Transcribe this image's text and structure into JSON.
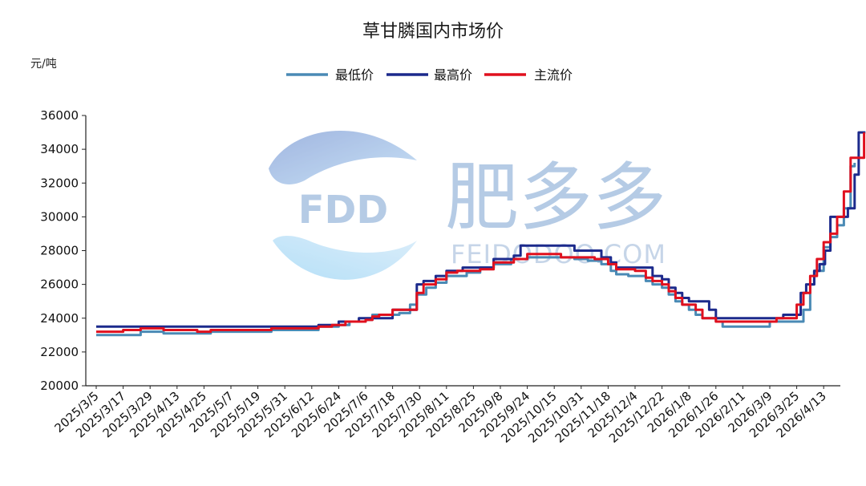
{
  "chart_data": {
    "type": "line",
    "title": "草甘膦国内市场价",
    "ylabel": "元/吨",
    "xlabel": "",
    "ylim": [
      20000,
      36000
    ],
    "yticks": [
      20000,
      22000,
      24000,
      26000,
      28000,
      30000,
      32000,
      34000,
      36000
    ],
    "x_tick_labels": [
      "2025/3/5",
      "2025/3/17",
      "2025/3/29",
      "2025/4/13",
      "2025/4/25",
      "2025/5/7",
      "2025/5/19",
      "2025/5/31",
      "2025/6/12",
      "2025/6/24",
      "2025/7/6",
      "2025/7/18",
      "2025/7/30",
      "2025/8/11",
      "2025/8/25",
      "2025/9/8",
      "2025/9/24",
      "2025/10/15",
      "2025/10/31",
      "2025/11/18",
      "2025/12/4",
      "2025/12/22",
      "2026/1/8",
      "2026/1/26",
      "2026/2/11",
      "2026/3/9",
      "2026/3/25",
      "2026/4/13"
    ],
    "legend_position": "top-center",
    "grid": false,
    "series": [
      {
        "name": "最低价",
        "color": "#4a8ab5",
        "points": [
          [
            0,
            23000
          ],
          [
            3.3,
            23200
          ],
          [
            5.0,
            23100
          ],
          [
            7.5,
            23100
          ],
          [
            8.5,
            23200
          ],
          [
            12.5,
            23200
          ],
          [
            13.0,
            23300
          ],
          [
            16.0,
            23300
          ],
          [
            16.5,
            23500
          ],
          [
            18.0,
            23600
          ],
          [
            18.8,
            23800
          ],
          [
            20.0,
            23900
          ],
          [
            20.5,
            24200
          ],
          [
            21.0,
            24200
          ],
          [
            22.5,
            24300
          ],
          [
            23.3,
            24800
          ],
          [
            23.8,
            25400
          ],
          [
            24.5,
            25800
          ],
          [
            25.2,
            26100
          ],
          [
            26.0,
            26500
          ],
          [
            26.8,
            26500
          ],
          [
            27.5,
            26700
          ],
          [
            28.5,
            27000
          ],
          [
            29.5,
            27200
          ],
          [
            30.8,
            27500
          ],
          [
            32.0,
            27600
          ],
          [
            33.5,
            27600
          ],
          [
            35.5,
            27500
          ],
          [
            36.5,
            27400
          ],
          [
            37.5,
            27200
          ],
          [
            38.2,
            26800
          ],
          [
            38.6,
            26600
          ],
          [
            39.5,
            26500
          ],
          [
            40.8,
            26200
          ],
          [
            41.3,
            26000
          ],
          [
            42.0,
            25800
          ],
          [
            42.5,
            25400
          ],
          [
            43.0,
            25000
          ],
          [
            43.5,
            24800
          ],
          [
            44.0,
            24500
          ],
          [
            44.5,
            24200
          ],
          [
            45.0,
            24000
          ],
          [
            46.0,
            23800
          ],
          [
            46.5,
            23500
          ],
          [
            47.0,
            23500
          ],
          [
            49.5,
            23500
          ],
          [
            50.0,
            23800
          ],
          [
            52.0,
            23800
          ],
          [
            52.5,
            24500
          ],
          [
            53.0,
            26000
          ],
          [
            53.3,
            26800
          ],
          [
            54.0,
            28200
          ],
          [
            54.5,
            28800
          ],
          [
            55.0,
            29500
          ],
          [
            55.5,
            30500
          ],
          [
            56.0,
            33000
          ],
          [
            56.3,
            33200
          ]
        ]
      },
      {
        "name": "最高价",
        "color": "#1c2a8c",
        "points": [
          [
            0,
            23500
          ],
          [
            16.0,
            23500
          ],
          [
            16.5,
            23600
          ],
          [
            18.0,
            23800
          ],
          [
            19.5,
            24000
          ],
          [
            21.5,
            24000
          ],
          [
            22.0,
            24500
          ],
          [
            23.3,
            24500
          ],
          [
            23.8,
            26000
          ],
          [
            24.3,
            26200
          ],
          [
            25.2,
            26500
          ],
          [
            26.0,
            26800
          ],
          [
            27.2,
            27000
          ],
          [
            29.5,
            27500
          ],
          [
            31.0,
            27700
          ],
          [
            31.5,
            28300
          ],
          [
            35.0,
            28300
          ],
          [
            35.5,
            28000
          ],
          [
            36.8,
            28000
          ],
          [
            37.5,
            27600
          ],
          [
            38.2,
            27300
          ],
          [
            38.6,
            27000
          ],
          [
            41.0,
            27000
          ],
          [
            41.3,
            26500
          ],
          [
            42.0,
            26300
          ],
          [
            42.5,
            25800
          ],
          [
            43.0,
            25500
          ],
          [
            43.5,
            25200
          ],
          [
            44.0,
            25000
          ],
          [
            45.0,
            25000
          ],
          [
            45.5,
            24500
          ],
          [
            46.0,
            24000
          ],
          [
            46.5,
            24000
          ],
          [
            50.5,
            24000
          ],
          [
            51.0,
            24200
          ],
          [
            51.8,
            24200
          ],
          [
            52.3,
            25500
          ],
          [
            52.7,
            26000
          ],
          [
            53.3,
            26800
          ],
          [
            53.7,
            27200
          ],
          [
            54.1,
            28000
          ],
          [
            54.5,
            30000
          ],
          [
            55.3,
            30000
          ],
          [
            55.8,
            30500
          ],
          [
            56.3,
            32500
          ],
          [
            56.6,
            35000
          ],
          [
            57.1,
            35000
          ]
        ]
      },
      {
        "name": "主流价",
        "color": "#e0101e",
        "points": [
          [
            0,
            23200
          ],
          [
            2.0,
            23300
          ],
          [
            3.3,
            23400
          ],
          [
            5.0,
            23300
          ],
          [
            7.5,
            23200
          ],
          [
            8.5,
            23300
          ],
          [
            12.5,
            23300
          ],
          [
            13.0,
            23400
          ],
          [
            16.0,
            23400
          ],
          [
            16.5,
            23500
          ],
          [
            17.5,
            23600
          ],
          [
            18.5,
            23800
          ],
          [
            20.0,
            23900
          ],
          [
            20.5,
            24100
          ],
          [
            21.0,
            24200
          ],
          [
            22.0,
            24500
          ],
          [
            23.3,
            24500
          ],
          [
            23.8,
            25500
          ],
          [
            24.3,
            26000
          ],
          [
            25.2,
            26300
          ],
          [
            26.0,
            26700
          ],
          [
            26.8,
            26800
          ],
          [
            28.5,
            26900
          ],
          [
            29.5,
            27300
          ],
          [
            31.0,
            27500
          ],
          [
            32.0,
            27800
          ],
          [
            33.5,
            27800
          ],
          [
            34.5,
            27600
          ],
          [
            36.0,
            27600
          ],
          [
            37.0,
            27500
          ],
          [
            38.0,
            27200
          ],
          [
            38.6,
            26900
          ],
          [
            40.0,
            26800
          ],
          [
            40.8,
            26400
          ],
          [
            41.3,
            26200
          ],
          [
            42.0,
            26000
          ],
          [
            42.5,
            25600
          ],
          [
            43.0,
            25200
          ],
          [
            43.5,
            24800
          ],
          [
            44.5,
            24500
          ],
          [
            45.0,
            24000
          ],
          [
            45.5,
            24000
          ],
          [
            46.0,
            23800
          ],
          [
            46.5,
            23800
          ],
          [
            50.0,
            23800
          ],
          [
            50.5,
            24000
          ],
          [
            51.5,
            24000
          ],
          [
            52.0,
            24800
          ],
          [
            52.5,
            25500
          ],
          [
            53.0,
            26500
          ],
          [
            53.5,
            27500
          ],
          [
            54.0,
            28500
          ],
          [
            54.5,
            29000
          ],
          [
            55.0,
            30000
          ],
          [
            55.5,
            31500
          ],
          [
            56.0,
            33500
          ],
          [
            56.5,
            33500
          ],
          [
            57.0,
            35000
          ]
        ]
      }
    ]
  },
  "watermark": {
    "logo_text": "FDD",
    "cn_text": "肥多多",
    "en_text": "FEIDODOO.COM",
    "color": "#8fb0d8"
  }
}
